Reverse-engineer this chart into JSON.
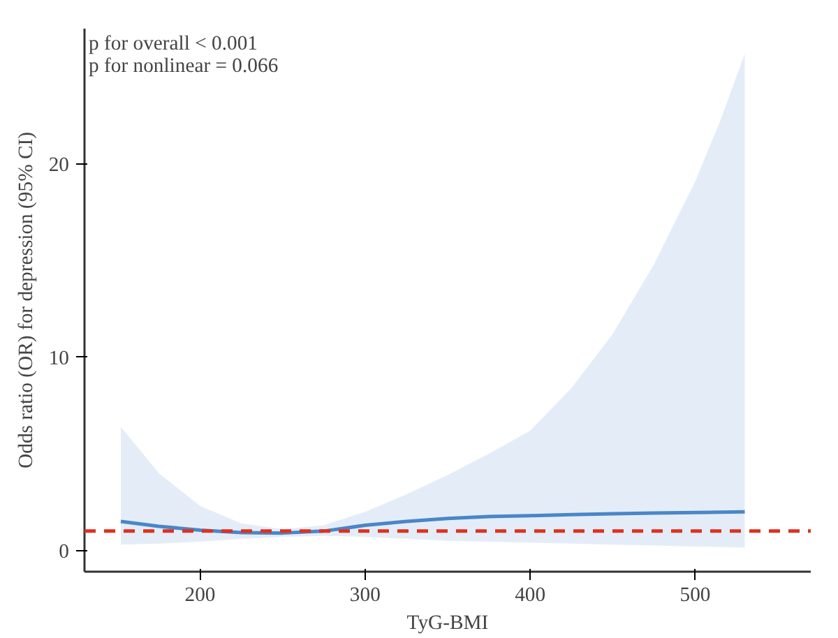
{
  "chart_data": {
    "type": "line",
    "xlabel": "TyG-BMI",
    "ylabel": "Odds ratio (OR) for depression (95% CI)",
    "annotations": [
      "p for overall < 0.001",
      "p for nonlinear = 0.066"
    ],
    "xlim": [
      130,
      570
    ],
    "ylim": [
      -1.1,
      27
    ],
    "xticks": [
      200,
      300,
      400,
      500
    ],
    "yticks": [
      0,
      10,
      20
    ],
    "grid": false,
    "line_style": "solid",
    "series": [
      {
        "color": "#4a86c8",
        "x": [
          152,
          175,
          200,
          225,
          250,
          275,
          300,
          325,
          350,
          375,
          400,
          425,
          450,
          475,
          500,
          515,
          530
        ],
        "values": [
          1.5,
          1.25,
          1.05,
          0.92,
          0.9,
          1.0,
          1.3,
          1.5,
          1.65,
          1.75,
          1.8,
          1.85,
          1.9,
          1.93,
          1.96,
          1.98,
          2.0
        ],
        "lower": [
          0.3,
          0.35,
          0.45,
          0.6,
          0.7,
          0.75,
          0.7,
          0.6,
          0.5,
          0.45,
          0.4,
          0.35,
          0.3,
          0.25,
          0.2,
          0.18,
          0.15
        ],
        "upper": [
          6.4,
          4.0,
          2.3,
          1.4,
          1.1,
          1.3,
          2.0,
          2.9,
          3.9,
          5.0,
          6.2,
          8.4,
          11.2,
          14.8,
          19.1,
          22.2,
          25.7
        ]
      }
    ],
    "ref_lines": [
      {
        "axis": "y",
        "value": 1,
        "color": "#e0301e",
        "line_style": "dashed"
      }
    ]
  }
}
